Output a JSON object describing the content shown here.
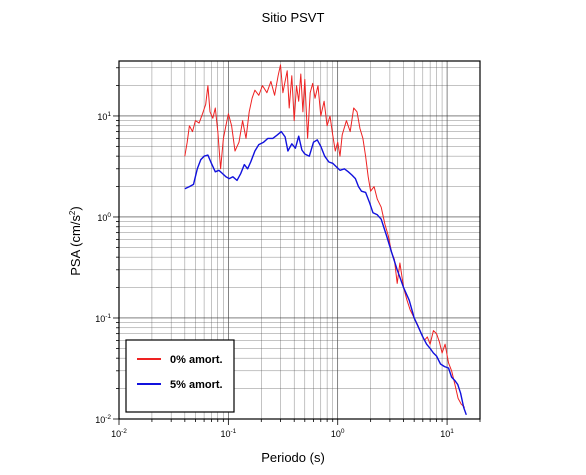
{
  "chart_data": {
    "type": "line",
    "title": "Sitio PSVT",
    "xlabel": "Periodo (s)",
    "ylabel": "PSA (cm/s",
    "ylabel_sup": "2",
    "ylabel_close": ")",
    "xscale": "log",
    "yscale": "log",
    "xlim": [
      0.01,
      20
    ],
    "ylim": [
      0.01,
      35
    ],
    "grid": true,
    "legend_position": "bottom-left",
    "x_ticks": [
      {
        "base": "10",
        "exp": "-2"
      },
      {
        "base": "10",
        "exp": "-1"
      },
      {
        "base": "10",
        "exp": "0"
      },
      {
        "base": "10",
        "exp": "1"
      }
    ],
    "y_ticks": [
      {
        "base": "10",
        "exp": "-2"
      },
      {
        "base": "10",
        "exp": "-1"
      },
      {
        "base": "10",
        "exp": "0"
      },
      {
        "base": "10",
        "exp": "1"
      }
    ],
    "series": [
      {
        "name": "0% amort.",
        "color": "#ee2222",
        "points": [
          [
            0.04,
            4.0
          ],
          [
            0.042,
            5.5
          ],
          [
            0.044,
            8.0
          ],
          [
            0.047,
            7.0
          ],
          [
            0.05,
            9.0
          ],
          [
            0.054,
            8.5
          ],
          [
            0.058,
            10.5
          ],
          [
            0.062,
            13.0
          ],
          [
            0.065,
            20.0
          ],
          [
            0.068,
            11.0
          ],
          [
            0.072,
            9.5
          ],
          [
            0.076,
            12.0
          ],
          [
            0.08,
            7.0
          ],
          [
            0.085,
            3.0
          ],
          [
            0.09,
            6.0
          ],
          [
            0.095,
            8.0
          ],
          [
            0.1,
            10.5
          ],
          [
            0.107,
            8.0
          ],
          [
            0.115,
            4.5
          ],
          [
            0.125,
            5.5
          ],
          [
            0.135,
            9.0
          ],
          [
            0.145,
            6.0
          ],
          [
            0.155,
            11.0
          ],
          [
            0.165,
            15.0
          ],
          [
            0.175,
            18.0
          ],
          [
            0.19,
            16.0
          ],
          [
            0.205,
            20.0
          ],
          [
            0.225,
            17.0
          ],
          [
            0.245,
            22.0
          ],
          [
            0.265,
            16.0
          ],
          [
            0.285,
            25.0
          ],
          [
            0.3,
            32.0
          ],
          [
            0.315,
            17.0
          ],
          [
            0.33,
            22.0
          ],
          [
            0.345,
            28.0
          ],
          [
            0.36,
            12.0
          ],
          [
            0.38,
            25.0
          ],
          [
            0.4,
            9.0
          ],
          [
            0.42,
            20.0
          ],
          [
            0.44,
            14.0
          ],
          [
            0.46,
            26.0
          ],
          [
            0.48,
            11.0
          ],
          [
            0.5,
            23.0
          ],
          [
            0.53,
            6.0
          ],
          [
            0.56,
            17.0
          ],
          [
            0.59,
            21.0
          ],
          [
            0.62,
            15.0
          ],
          [
            0.66,
            20.0
          ],
          [
            0.7,
            10.0
          ],
          [
            0.75,
            14.0
          ],
          [
            0.8,
            8.0
          ],
          [
            0.85,
            10.0
          ],
          [
            0.9,
            6.5
          ],
          [
            0.95,
            4.5
          ],
          [
            1.0,
            5.5
          ],
          [
            1.05,
            4.0
          ],
          [
            1.1,
            6.5
          ],
          [
            1.2,
            9.0
          ],
          [
            1.3,
            7.0
          ],
          [
            1.4,
            12.0
          ],
          [
            1.5,
            11.0
          ],
          [
            1.6,
            7.5
          ],
          [
            1.7,
            6.0
          ],
          [
            1.8,
            4.0
          ],
          [
            1.9,
            2.5
          ],
          [
            2.0,
            1.8
          ],
          [
            2.15,
            2.0
          ],
          [
            2.3,
            1.5
          ],
          [
            2.5,
            1.25
          ],
          [
            2.7,
            0.85
          ],
          [
            2.9,
            0.65
          ],
          [
            3.1,
            0.45
          ],
          [
            3.3,
            0.38
          ],
          [
            3.5,
            0.22
          ],
          [
            3.7,
            0.35
          ],
          [
            4.0,
            0.2
          ],
          [
            4.3,
            0.15
          ],
          [
            4.6,
            0.12
          ],
          [
            5.0,
            0.1
          ],
          [
            5.4,
            0.085
          ],
          [
            5.8,
            0.07
          ],
          [
            6.2,
            0.06
          ],
          [
            6.6,
            0.065
          ],
          [
            7.0,
            0.055
          ],
          [
            7.5,
            0.075
          ],
          [
            8.0,
            0.07
          ],
          [
            8.5,
            0.058
          ],
          [
            9.0,
            0.045
          ],
          [
            9.6,
            0.055
          ],
          [
            10.3,
            0.036
          ],
          [
            11.0,
            0.03
          ],
          [
            11.8,
            0.022
          ],
          [
            12.6,
            0.016
          ],
          [
            13.5,
            0.014
          ],
          [
            14.5,
            0.013
          ]
        ]
      },
      {
        "name": "5% amort.",
        "color": "#1111dd",
        "points": [
          [
            0.04,
            1.9
          ],
          [
            0.044,
            2.0
          ],
          [
            0.048,
            2.1
          ],
          [
            0.052,
            3.0
          ],
          [
            0.056,
            3.7
          ],
          [
            0.06,
            4.0
          ],
          [
            0.065,
            4.1
          ],
          [
            0.07,
            3.4
          ],
          [
            0.076,
            2.8
          ],
          [
            0.082,
            2.9
          ],
          [
            0.088,
            2.7
          ],
          [
            0.095,
            2.5
          ],
          [
            0.102,
            2.4
          ],
          [
            0.11,
            2.5
          ],
          [
            0.12,
            2.3
          ],
          [
            0.13,
            2.7
          ],
          [
            0.14,
            3.3
          ],
          [
            0.15,
            3.0
          ],
          [
            0.16,
            3.5
          ],
          [
            0.175,
            4.5
          ],
          [
            0.19,
            5.2
          ],
          [
            0.21,
            5.5
          ],
          [
            0.23,
            6.0
          ],
          [
            0.255,
            6.0
          ],
          [
            0.28,
            6.5
          ],
          [
            0.305,
            7.0
          ],
          [
            0.33,
            6.2
          ],
          [
            0.35,
            4.5
          ],
          [
            0.38,
            5.3
          ],
          [
            0.41,
            4.8
          ],
          [
            0.44,
            6.3
          ],
          [
            0.47,
            4.6
          ],
          [
            0.5,
            4.2
          ],
          [
            0.55,
            4.0
          ],
          [
            0.6,
            5.5
          ],
          [
            0.65,
            5.8
          ],
          [
            0.7,
            5.0
          ],
          [
            0.76,
            4.0
          ],
          [
            0.83,
            3.5
          ],
          [
            0.9,
            3.4
          ],
          [
            0.98,
            3.1
          ],
          [
            1.05,
            2.9
          ],
          [
            1.15,
            3.0
          ],
          [
            1.25,
            2.8
          ],
          [
            1.35,
            2.6
          ],
          [
            1.45,
            2.4
          ],
          [
            1.55,
            2.0
          ],
          [
            1.65,
            1.8
          ],
          [
            1.8,
            1.75
          ],
          [
            1.95,
            1.4
          ],
          [
            2.1,
            1.1
          ],
          [
            2.3,
            1.05
          ],
          [
            2.5,
            0.95
          ],
          [
            2.8,
            0.65
          ],
          [
            3.1,
            0.45
          ],
          [
            3.5,
            0.3
          ],
          [
            4.0,
            0.2
          ],
          [
            4.5,
            0.15
          ],
          [
            5.0,
            0.1
          ],
          [
            5.5,
            0.08
          ],
          [
            6.0,
            0.065
          ],
          [
            6.5,
            0.055
          ],
          [
            7.0,
            0.05
          ],
          [
            7.5,
            0.045
          ],
          [
            8.0,
            0.042
          ],
          [
            8.7,
            0.035
          ],
          [
            9.5,
            0.033
          ],
          [
            10.3,
            0.032
          ],
          [
            11.0,
            0.026
          ],
          [
            11.8,
            0.024
          ],
          [
            12.5,
            0.022
          ],
          [
            13.3,
            0.018
          ],
          [
            14.2,
            0.013
          ],
          [
            15.0,
            0.011
          ]
        ]
      }
    ]
  }
}
